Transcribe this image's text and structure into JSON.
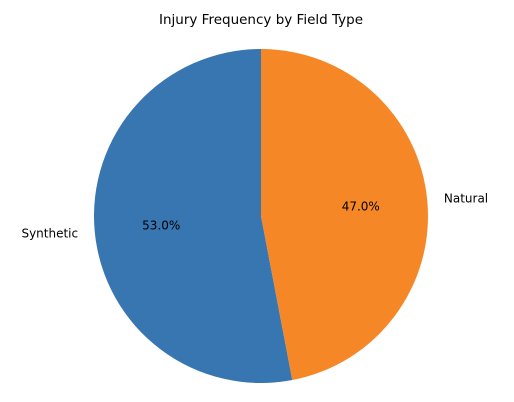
{
  "chart_data": {
    "type": "pie",
    "title": "Injury Frequency by Field Type",
    "categories": [
      "Synthetic",
      "Natural"
    ],
    "values": [
      53.0,
      47.0
    ],
    "percent_labels": [
      "53.0%",
      "47.0%"
    ],
    "colors": [
      "#3776b0",
      "#f58727"
    ],
    "start_angle_deg": 90,
    "direction": "counterclockwise",
    "legend": "none"
  }
}
